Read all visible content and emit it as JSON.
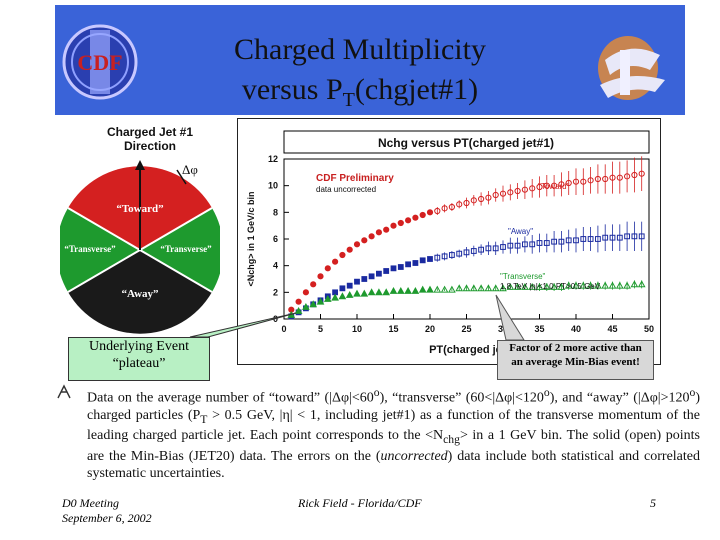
{
  "slide": {
    "title_line1": "Charged Multiplicity",
    "title_line2_prefix": "versus P",
    "title_line2_sub": "T",
    "title_line2_suffix": "(chgjet#1)",
    "cdf_logo_text": "CDF",
    "header_color": "#3a63d8"
  },
  "diagram": {
    "line1": "Charged Jet #1",
    "line2": "Direction",
    "dphi": "Δφ",
    "toward": "“Toward”",
    "transverse_left": "“Transverse”",
    "transverse_right": "“Transverse”",
    "away": "“Away”",
    "colors": {
      "toward": "#d42020",
      "transverse": "#1e9a2e",
      "away": "#1a1a1a"
    }
  },
  "callouts": {
    "plateau_line1": "Underlying Event",
    "plateau_line2": "“plateau”",
    "factor_line1": "Factor of 2 more active than",
    "factor_line2": "an average Min-Bias event!"
  },
  "chart_data": {
    "type": "scatter",
    "title": "Nchg versus PT(charged jet#1)",
    "xlabel": "PT(charged jet#1)  (GeV/c)",
    "ylabel": "<Nchg> in 1 GeV/c bin",
    "xlim": [
      0,
      50
    ],
    "ylim": [
      0,
      12
    ],
    "xticks": [
      0,
      5,
      10,
      15,
      20,
      25,
      30,
      35,
      40,
      45,
      50
    ],
    "yticks": [
      0,
      2,
      4,
      6,
      8,
      10,
      12
    ],
    "annotations": {
      "preliminary": "CDF Preliminary",
      "uncorrected": "data uncorrected",
      "cuts": "1.8 TeV |η|<1.0 PT>0.5 GeV"
    },
    "series": [
      {
        "name": "\"Toward\"",
        "color": "#d42020",
        "marker": "circle",
        "x": [
          1,
          2,
          3,
          4,
          5,
          6,
          7,
          8,
          9,
          10,
          11,
          12,
          13,
          14,
          15,
          16,
          17,
          18,
          19,
          20,
          21,
          22,
          23,
          24,
          25,
          26,
          27,
          28,
          29,
          30,
          31,
          32,
          33,
          34,
          35,
          36,
          37,
          38,
          39,
          40,
          41,
          42,
          43,
          44,
          45,
          46,
          47,
          48,
          49
        ],
        "y": [
          0.7,
          1.3,
          2.0,
          2.6,
          3.2,
          3.8,
          4.3,
          4.8,
          5.2,
          5.6,
          5.9,
          6.2,
          6.5,
          6.7,
          7.0,
          7.2,
          7.4,
          7.6,
          7.8,
          8.0,
          8.1,
          8.3,
          8.4,
          8.6,
          8.7,
          8.9,
          9.0,
          9.1,
          9.3,
          9.4,
          9.5,
          9.6,
          9.7,
          9.8,
          9.9,
          10.0,
          10.0,
          10.1,
          10.2,
          10.3,
          10.3,
          10.4,
          10.5,
          10.5,
          10.6,
          10.6,
          10.7,
          10.8,
          10.9
        ],
        "err": [
          0.1,
          0.1,
          0.1,
          0.1,
          0.1,
          0.1,
          0.1,
          0.1,
          0.1,
          0.1,
          0.1,
          0.1,
          0.1,
          0.1,
          0.1,
          0.2,
          0.2,
          0.2,
          0.2,
          0.2,
          0.3,
          0.3,
          0.3,
          0.3,
          0.4,
          0.4,
          0.5,
          0.5,
          0.5,
          0.6,
          0.6,
          0.6,
          0.7,
          0.7,
          0.8,
          0.8,
          0.8,
          0.9,
          0.9,
          1.0,
          1.0,
          1.0,
          1.1,
          1.1,
          1.2,
          1.2,
          1.2,
          1.3,
          1.3
        ]
      },
      {
        "name": "\"Away\"",
        "color": "#1a2aa0",
        "marker": "square",
        "x": [
          1,
          2,
          3,
          4,
          5,
          6,
          7,
          8,
          9,
          10,
          11,
          12,
          13,
          14,
          15,
          16,
          17,
          18,
          19,
          20,
          21,
          22,
          23,
          24,
          25,
          26,
          27,
          28,
          29,
          30,
          31,
          32,
          33,
          34,
          35,
          36,
          37,
          38,
          39,
          40,
          41,
          42,
          43,
          44,
          45,
          46,
          47,
          48,
          49
        ],
        "y": [
          0.2,
          0.5,
          0.8,
          1.1,
          1.4,
          1.7,
          2.0,
          2.3,
          2.5,
          2.8,
          3.0,
          3.2,
          3.4,
          3.6,
          3.8,
          3.9,
          4.1,
          4.2,
          4.4,
          4.5,
          4.6,
          4.7,
          4.8,
          4.9,
          5.0,
          5.1,
          5.2,
          5.3,
          5.3,
          5.4,
          5.5,
          5.5,
          5.6,
          5.6,
          5.7,
          5.7,
          5.8,
          5.8,
          5.9,
          5.9,
          6.0,
          6.0,
          6.0,
          6.1,
          6.1,
          6.1,
          6.2,
          6.2,
          6.2
        ],
        "err": [
          0.1,
          0.1,
          0.1,
          0.1,
          0.1,
          0.1,
          0.1,
          0.1,
          0.1,
          0.1,
          0.1,
          0.1,
          0.1,
          0.1,
          0.1,
          0.2,
          0.2,
          0.2,
          0.2,
          0.2,
          0.3,
          0.3,
          0.3,
          0.3,
          0.4,
          0.4,
          0.4,
          0.5,
          0.5,
          0.5,
          0.6,
          0.6,
          0.6,
          0.7,
          0.7,
          0.7,
          0.8,
          0.8,
          0.8,
          0.9,
          0.9,
          0.9,
          1.0,
          1.0,
          1.0,
          1.0,
          1.1,
          1.1,
          1.1
        ]
      },
      {
        "name": "\"Transverse\"",
        "color": "#1e9a2e",
        "marker": "triangle",
        "x": [
          1,
          2,
          3,
          4,
          5,
          6,
          7,
          8,
          9,
          10,
          11,
          12,
          13,
          14,
          15,
          16,
          17,
          18,
          19,
          20,
          21,
          22,
          23,
          24,
          25,
          26,
          27,
          28,
          29,
          30,
          31,
          32,
          33,
          34,
          35,
          36,
          37,
          38,
          39,
          40,
          41,
          42,
          43,
          44,
          45,
          46,
          47,
          48,
          49
        ],
        "y": [
          0.3,
          0.6,
          0.9,
          1.1,
          1.3,
          1.5,
          1.6,
          1.7,
          1.8,
          1.9,
          1.9,
          2.0,
          2.0,
          2.0,
          2.1,
          2.1,
          2.1,
          2.1,
          2.2,
          2.2,
          2.2,
          2.2,
          2.2,
          2.3,
          2.3,
          2.3,
          2.3,
          2.3,
          2.3,
          2.3,
          2.4,
          2.4,
          2.4,
          2.4,
          2.4,
          2.4,
          2.4,
          2.4,
          2.5,
          2.5,
          2.5,
          2.5,
          2.5,
          2.5,
          2.5,
          2.5,
          2.5,
          2.6,
          2.6
        ],
        "err": [
          0.05,
          0.05,
          0.05,
          0.05,
          0.05,
          0.05,
          0.05,
          0.05,
          0.05,
          0.05,
          0.1,
          0.1,
          0.1,
          0.1,
          0.1,
          0.1,
          0.1,
          0.1,
          0.1,
          0.1,
          0.1,
          0.1,
          0.1,
          0.2,
          0.2,
          0.2,
          0.2,
          0.2,
          0.2,
          0.2,
          0.2,
          0.2,
          0.2,
          0.2,
          0.3,
          0.3,
          0.3,
          0.3,
          0.3,
          0.3,
          0.3,
          0.3,
          0.3,
          0.3,
          0.3,
          0.3,
          0.3,
          0.3,
          0.3
        ]
      }
    ]
  },
  "bullet": {
    "part1": "Data on the average number of “toward” (|Δφ|<60",
    "deg1": "o",
    "part2": "), “transverse” (60<|Δφ|<120",
    "deg2": "o",
    "part3": "), and “away” (|Δφ|>120",
    "deg3": "o",
    "part4": ") charged particles (P",
    "sub1": "T",
    "part5": " > 0.5 GeV, |η| < 1, including jet#1)  as a function of the transverse momentum of the leading charged particle jet. Each point corresponds to the <N",
    "sub2": "chg",
    "part6": "> in a 1 GeV bin. The solid (open) points are the Min-Bias (JET20) data. The errors on the (",
    "italic": "uncorrected",
    "part7": ") data include both statistical and correlated systematic uncertainties."
  },
  "footer": {
    "meeting": "D0 Meeting",
    "date": "September 6, 2002",
    "author": "Rick Field - Florida/CDF",
    "page": "5"
  }
}
